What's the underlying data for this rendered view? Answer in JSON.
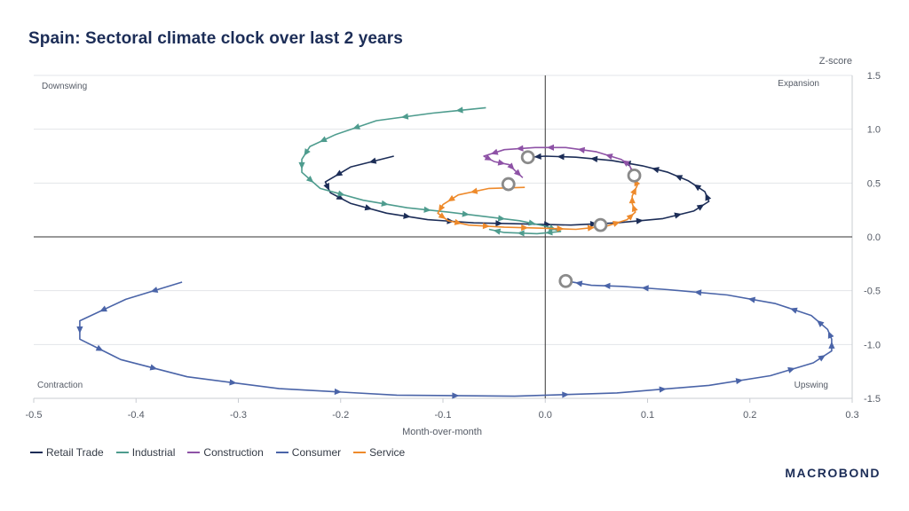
{
  "title": "Spain: Sectoral climate clock over last 2 years",
  "brand": "MACROBOND",
  "chart_data": {
    "type": "line",
    "title": "Spain: Sectoral climate clock over last 2 years",
    "xlabel": "Month-over-month",
    "ylabel": "Z-score",
    "xlim": [
      -0.5,
      0.3
    ],
    "ylim": [
      -1.5,
      1.5
    ],
    "xticks": [
      -0.5,
      -0.4,
      -0.3,
      -0.2,
      -0.1,
      0.0,
      0.1,
      0.2,
      0.3
    ],
    "yticks": [
      1.5,
      1.0,
      0.5,
      0.0,
      -0.5,
      -1.0,
      -1.5
    ],
    "xtick_labels": [
      "-0.5",
      "-0.4",
      "-0.3",
      "-0.2",
      "-0.1",
      "0.0",
      "0.1",
      "0.2",
      "0.3"
    ],
    "ytick_labels": [
      "1.5",
      "1.0",
      "0.5",
      "0.0",
      "-0.5",
      "-1.0",
      "-1.5"
    ],
    "quadrants": {
      "top_left": "Downswing",
      "top_right": "Expansion",
      "bottom_left": "Contraction",
      "bottom_right": "Upswing"
    },
    "series": [
      {
        "name": "Retail Trade",
        "color": "#1c2d57",
        "points": [
          [
            -0.148,
            0.75
          ],
          [
            -0.19,
            0.65
          ],
          [
            -0.215,
            0.51
          ],
          [
            -0.21,
            0.41
          ],
          [
            -0.19,
            0.31
          ],
          [
            -0.155,
            0.22
          ],
          [
            -0.115,
            0.16
          ],
          [
            -0.07,
            0.13
          ],
          [
            -0.02,
            0.12
          ],
          [
            0.025,
            0.11
          ],
          [
            0.07,
            0.13
          ],
          [
            0.115,
            0.17
          ],
          [
            0.145,
            0.24
          ],
          [
            0.16,
            0.33
          ],
          [
            0.156,
            0.42
          ],
          [
            0.14,
            0.52
          ],
          [
            0.12,
            0.6
          ],
          [
            0.095,
            0.66
          ],
          [
            0.065,
            0.71
          ],
          [
            0.03,
            0.74
          ],
          [
            0.0,
            0.75
          ],
          [
            -0.015,
            0.74
          ]
        ]
      },
      {
        "name": "Industrial",
        "color": "#4e9c8e",
        "points": [
          [
            -0.058,
            1.2
          ],
          [
            -0.11,
            1.15
          ],
          [
            -0.165,
            1.08
          ],
          [
            -0.205,
            0.95
          ],
          [
            -0.23,
            0.84
          ],
          [
            -0.238,
            0.72
          ],
          [
            -0.238,
            0.6
          ],
          [
            -0.22,
            0.45
          ],
          [
            -0.178,
            0.34
          ],
          [
            -0.135,
            0.27
          ],
          [
            -0.095,
            0.23
          ],
          [
            -0.06,
            0.19
          ],
          [
            -0.025,
            0.15
          ],
          [
            0.0,
            0.1
          ],
          [
            0.015,
            0.05
          ],
          [
            -0.008,
            0.03
          ],
          [
            -0.04,
            0.04
          ],
          [
            -0.055,
            0.07
          ]
        ]
      },
      {
        "name": "Construction",
        "color": "#8e52a6",
        "points": [
          [
            0.087,
            0.57
          ],
          [
            0.082,
            0.67
          ],
          [
            0.074,
            0.72
          ],
          [
            0.05,
            0.79
          ],
          [
            0.02,
            0.83
          ],
          [
            -0.01,
            0.83
          ],
          [
            -0.04,
            0.81
          ],
          [
            -0.06,
            0.75
          ],
          [
            -0.05,
            0.7
          ],
          [
            -0.035,
            0.67
          ],
          [
            -0.03,
            0.62
          ],
          [
            -0.022,
            0.55
          ]
        ]
      },
      {
        "name": "Consumer",
        "color": "#4a64a8",
        "points": [
          [
            -0.355,
            -0.42
          ],
          [
            -0.41,
            -0.58
          ],
          [
            -0.455,
            -0.78
          ],
          [
            -0.455,
            -0.95
          ],
          [
            -0.415,
            -1.14
          ],
          [
            -0.35,
            -1.3
          ],
          [
            -0.26,
            -1.41
          ],
          [
            -0.145,
            -1.47
          ],
          [
            -0.03,
            -1.48
          ],
          [
            0.07,
            -1.45
          ],
          [
            0.16,
            -1.38
          ],
          [
            0.22,
            -1.29
          ],
          [
            0.262,
            -1.17
          ],
          [
            0.28,
            -1.06
          ],
          [
            0.28,
            -0.95
          ],
          [
            0.276,
            -0.86
          ],
          [
            0.26,
            -0.73
          ],
          [
            0.225,
            -0.62
          ],
          [
            0.178,
            -0.54
          ],
          [
            0.12,
            -0.49
          ],
          [
            0.075,
            -0.46
          ],
          [
            0.045,
            -0.45
          ],
          [
            0.02,
            -0.41
          ]
        ]
      },
      {
        "name": "Service",
        "color": "#ee8a2b",
        "points": [
          [
            -0.02,
            0.46
          ],
          [
            -0.055,
            0.45
          ],
          [
            -0.085,
            0.39
          ],
          [
            -0.1,
            0.3
          ],
          [
            -0.105,
            0.22
          ],
          [
            -0.095,
            0.15
          ],
          [
            -0.075,
            0.11
          ],
          [
            -0.04,
            0.09
          ],
          [
            0.0,
            0.08
          ],
          [
            0.03,
            0.07
          ],
          [
            0.06,
            0.1
          ],
          [
            0.08,
            0.16
          ],
          [
            0.088,
            0.23
          ],
          [
            0.085,
            0.31
          ],
          [
            0.085,
            0.38
          ],
          [
            0.09,
            0.48
          ],
          [
            0.087,
            0.54
          ]
        ]
      }
    ],
    "latest_markers": [
      [
        0.087,
        0.57
      ],
      [
        -0.017,
        0.74
      ],
      [
        -0.036,
        0.49
      ],
      [
        0.054,
        0.11
      ],
      [
        0.02,
        -0.41
      ]
    ]
  }
}
